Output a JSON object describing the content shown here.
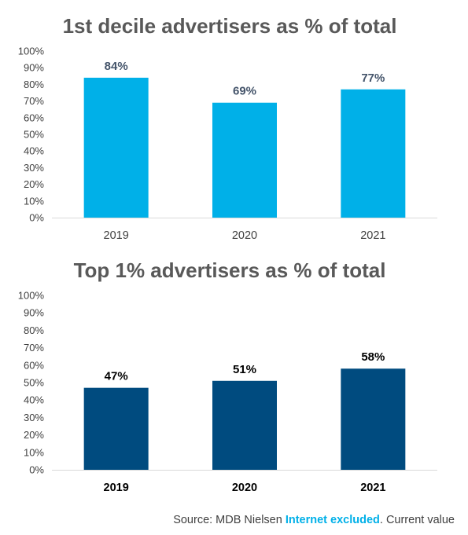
{
  "chart_data": [
    {
      "type": "bar",
      "title": "1st decile advertisers as % of total",
      "categories": [
        "2019",
        "2020",
        "2021"
      ],
      "values": [
        84,
        69,
        77
      ],
      "data_labels": [
        "84%",
        "69%",
        "77%"
      ],
      "ylim": [
        0,
        100
      ],
      "yticks": [
        "0%",
        "10%",
        "20%",
        "30%",
        "40%",
        "50%",
        "60%",
        "70%",
        "80%",
        "90%",
        "100%"
      ],
      "xlabel": "",
      "ylabel": "",
      "grid": false,
      "bar_color": "#00b0e8",
      "label_color": "#44546a",
      "category_color": "#404040",
      "category_bold": false
    },
    {
      "type": "bar",
      "title": "Top 1% advertisers as % of total",
      "categories": [
        "2019",
        "2020",
        "2021"
      ],
      "values": [
        47,
        51,
        58
      ],
      "data_labels": [
        "47%",
        "51%",
        "58%"
      ],
      "ylim": [
        0,
        100
      ],
      "yticks": [
        "0%",
        "10%",
        "20%",
        "30%",
        "40%",
        "50%",
        "60%",
        "70%",
        "80%",
        "90%",
        "100%"
      ],
      "xlabel": "",
      "ylabel": "",
      "grid": false,
      "bar_color": "#004b7f",
      "label_color": "#000000",
      "category_color": "#000000",
      "category_bold": true
    }
  ],
  "source": {
    "prefix": "Source: MDB Nielsen ",
    "highlight": "Internet excluded",
    "suffix": ". Current value"
  }
}
